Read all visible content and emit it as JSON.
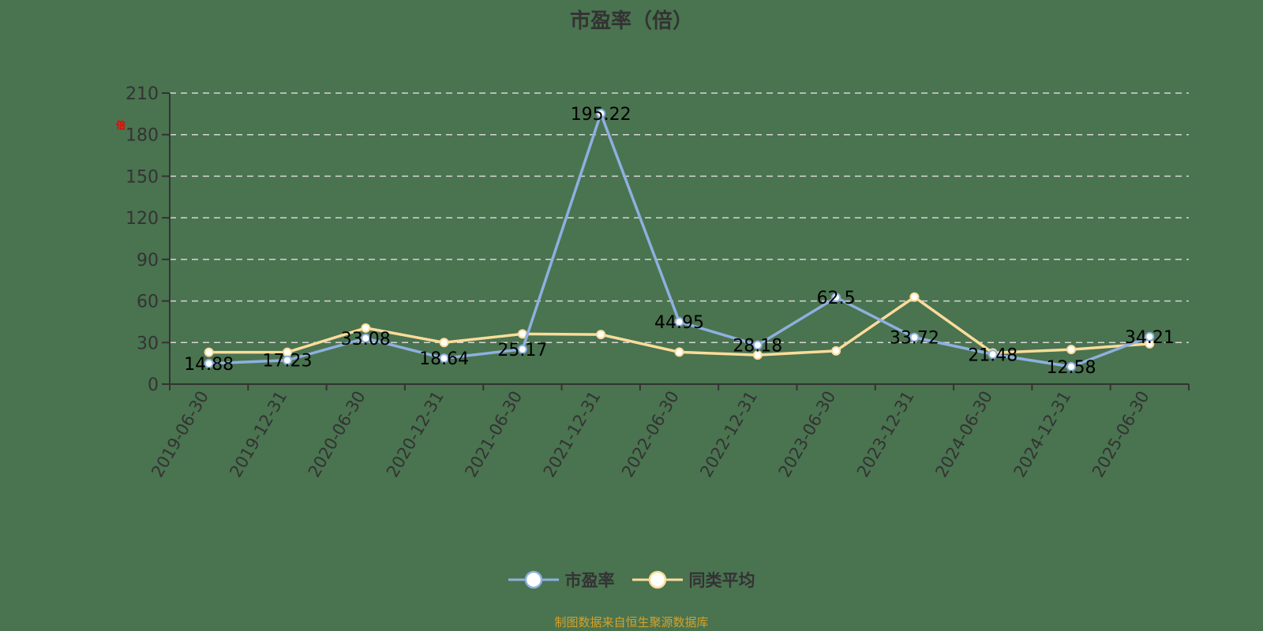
{
  "title": "市盈率（倍）",
  "y_marker": "倍",
  "legend": [
    {
      "name": "市盈率",
      "color": "#8eb0de"
    },
    {
      "name": "同类平均",
      "color": "#fbdc9a"
    }
  ],
  "footer": "制图数据来自恒生聚源数据库",
  "colors": {
    "background": "#4a7350",
    "axis": "#333333",
    "grid": "#d6d6d6",
    "pe_line": "#8eb0de",
    "avg_line": "#fbdc9a",
    "footer": "#d4a22a"
  },
  "chart_data": {
    "type": "line",
    "title": "市盈率（倍）",
    "xlabel": "",
    "ylabel": "",
    "ylim": [
      0,
      210
    ],
    "yticks": [
      0,
      30,
      60,
      90,
      120,
      150,
      180,
      210
    ],
    "grid": true,
    "legend_position": "bottom",
    "categories": [
      "2019-06-30",
      "2019-12-31",
      "2020-06-30",
      "2020-12-31",
      "2021-06-30",
      "2021-12-31",
      "2022-06-30",
      "2022-12-31",
      "2023-06-30",
      "2023-12-31",
      "2024-06-30",
      "2024-12-31",
      "2025-06-30"
    ],
    "series": [
      {
        "name": "市盈率",
        "values": [
          14.88,
          17.23,
          33.08,
          18.64,
          25.17,
          195.22,
          44.95,
          28.18,
          62.5,
          33.72,
          21.48,
          12.58,
          34.21
        ],
        "labels_shown": true
      },
      {
        "name": "同类平均",
        "values": [
          23.0,
          23.0,
          40.5,
          30.0,
          36.2,
          35.8,
          23.1,
          21.0,
          24.0,
          62.8,
          22.5,
          25.0,
          29.1
        ],
        "labels_shown": false
      }
    ]
  }
}
